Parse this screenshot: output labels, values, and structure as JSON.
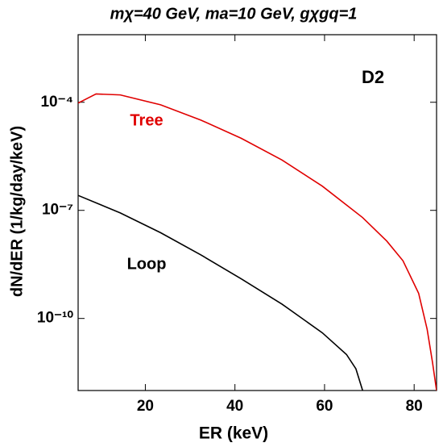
{
  "chart_data": {
    "type": "line",
    "title": "mχ=40 GeV, ma=10 GeV, gχgq=1",
    "x_label": "ER (keV)",
    "y_label": "dN/dER (1/kg/day/keV)",
    "annotations": [
      "D2",
      "Tree",
      "Loop"
    ],
    "log_y": true,
    "xlim": [
      5,
      85
    ],
    "ylim": [
      1e-12,
      0.0075
    ],
    "xticks": [
      20,
      40,
      60,
      80
    ],
    "yticks": [
      {
        "value": 0.0001,
        "label": "10⁻⁴"
      },
      {
        "value": 1e-07,
        "label": "10⁻⁷"
      },
      {
        "value": 1e-10,
        "label": "10⁻¹⁰"
      }
    ],
    "series": [
      {
        "name": "Tree",
        "color": "#e00000",
        "x": [
          5,
          9,
          14.4,
          23.4,
          32.4,
          41.4,
          50.5,
          59.5,
          68.5,
          73.9,
          77.5,
          81,
          82.9,
          84.1,
          85
        ],
        "values": [
          9.5e-05,
          0.00017,
          0.00016,
          8.5e-05,
          3.2e-05,
          1e-05,
          2.5e-06,
          4.7e-07,
          6.3e-08,
          1.4e-08,
          4e-09,
          5e-10,
          5e-11,
          6e-12,
          1e-12
        ]
      },
      {
        "name": "Loop",
        "color": "#000000",
        "x": [
          5,
          14.4,
          23.4,
          32.4,
          41.4,
          50.5,
          59.5,
          64.9,
          67,
          68.5
        ],
        "values": [
          2.6e-07,
          8.5e-08,
          2.4e-08,
          5.8e-09,
          1.26e-09,
          2.5e-10,
          4e-11,
          1e-11,
          4e-12,
          1e-12
        ]
      }
    ]
  }
}
